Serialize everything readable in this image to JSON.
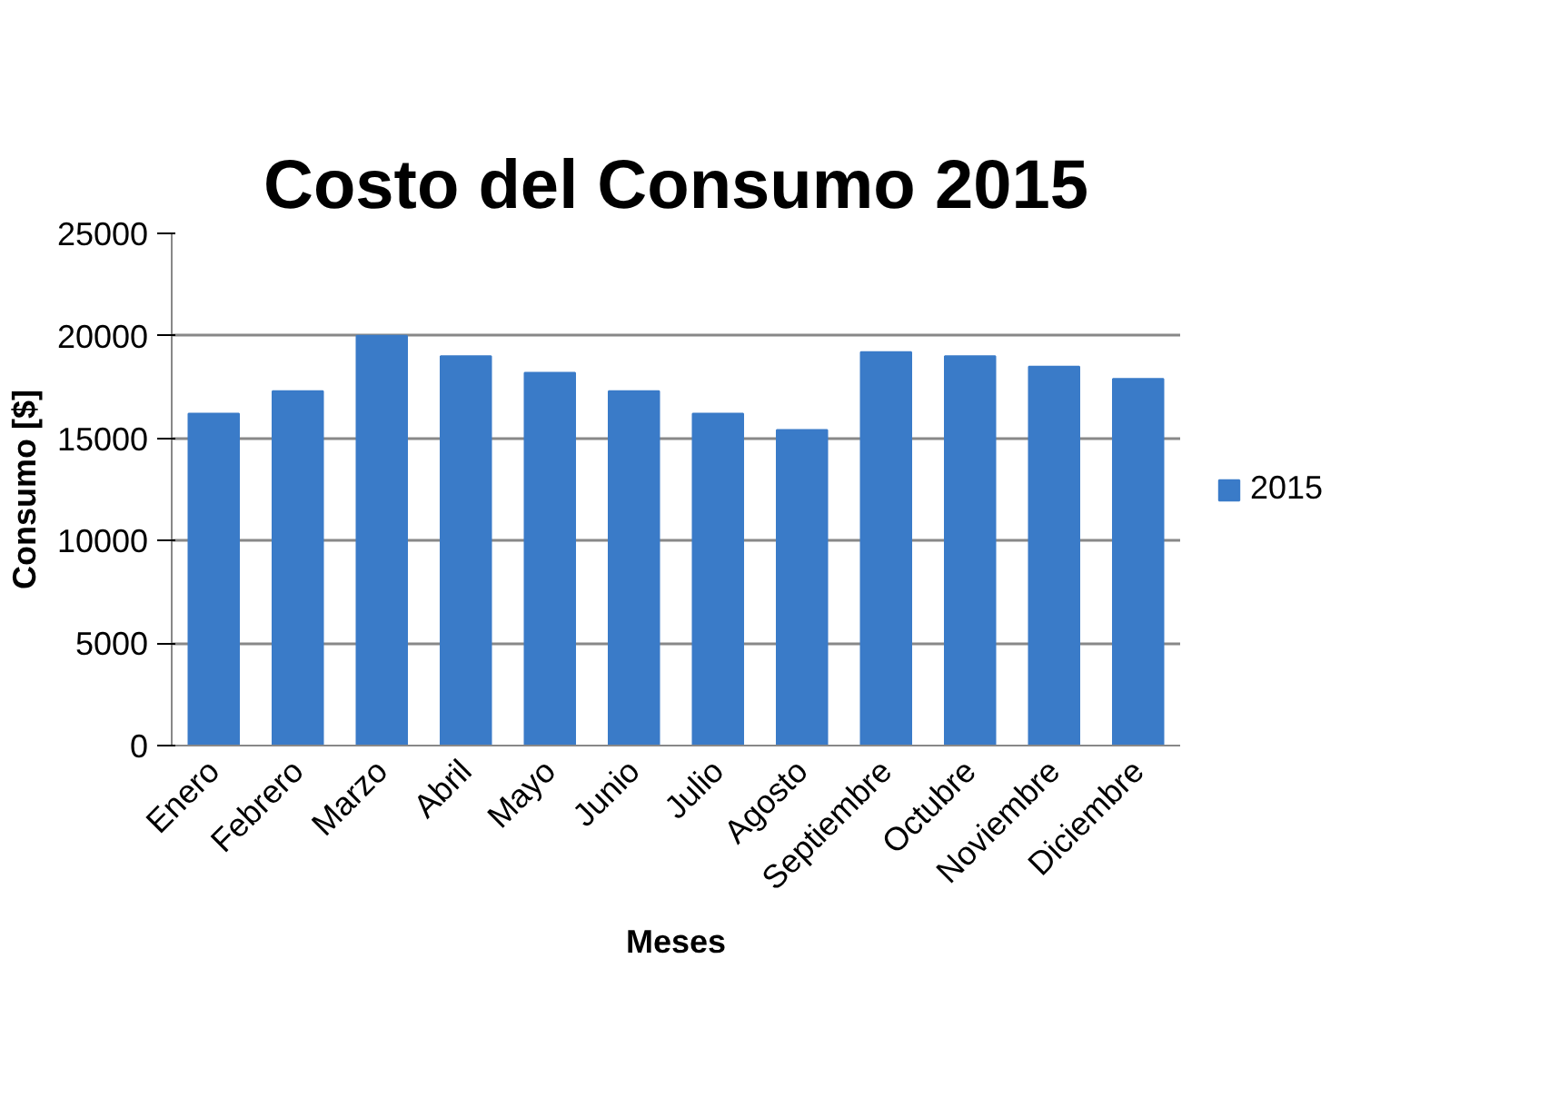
{
  "chart_data": {
    "type": "bar",
    "title": "Costo del Consumo 2015",
    "xlabel": "Meses",
    "ylabel": "Consumo [$]",
    "categories": [
      "Enero",
      "Febrero",
      "Marzo",
      "Abril",
      "Mayo",
      "Junio",
      "Julio",
      "Agosto",
      "Septiembre",
      "Octubre",
      "Noviembre",
      "Diciembre"
    ],
    "series": [
      {
        "name": "2015",
        "color": "#3a7bc8",
        "values": [
          16200,
          17300,
          20000,
          19000,
          18200,
          17300,
          16200,
          15400,
          19200,
          19000,
          18500,
          17900
        ]
      }
    ],
    "ylim": [
      0,
      25000
    ],
    "yticks": [
      0,
      5000,
      10000,
      15000,
      20000,
      25000
    ],
    "grid": "y",
    "legend": "right"
  }
}
